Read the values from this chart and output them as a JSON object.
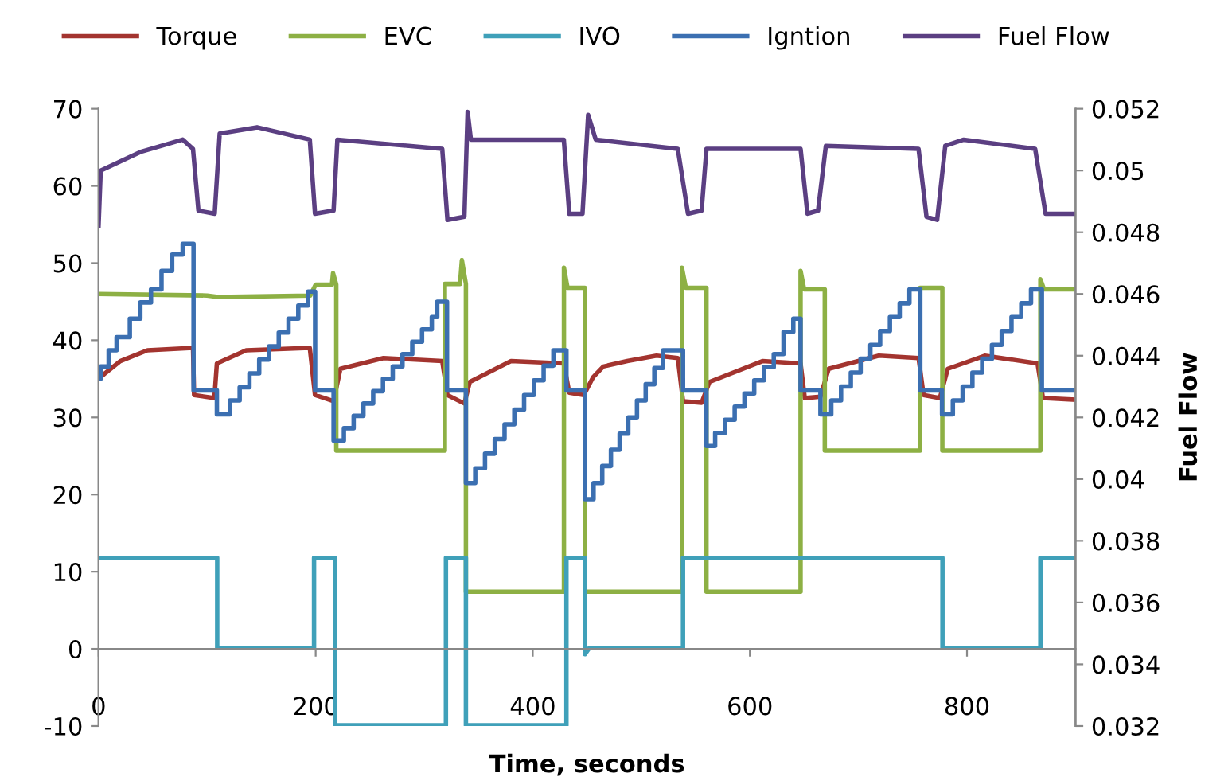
{
  "chart_data": {
    "type": "line",
    "xlabel": "Time, seconds",
    "y2label": "Fuel Flow",
    "xlim": [
      0,
      900
    ],
    "xticks": [
      0,
      200,
      400,
      600,
      800
    ],
    "ylim": [
      -10,
      70
    ],
    "yticks": [
      -10,
      0,
      10,
      20,
      30,
      40,
      50,
      60,
      70
    ],
    "y2lim": [
      0.032,
      0.052
    ],
    "y2ticks": [
      0.032,
      0.034,
      0.036,
      0.038,
      0.04,
      0.042,
      0.044,
      0.046,
      0.048,
      0.05,
      0.052
    ],
    "grid": false,
    "legend": "top",
    "marker": "none",
    "line_style": "solid",
    "series": [
      {
        "name": "Torque",
        "color": "#a3342f",
        "x": [
          0,
          5,
          20,
          45,
          87,
          88,
          106.7,
          109,
          136,
          194.6,
          199.4,
          216.5,
          222.8,
          262.5,
          316.6,
          321.4,
          337,
          342,
          380,
          428.6,
          433.6,
          447,
          455.5,
          465,
          487,
          514,
          533.6,
          538.4,
          555.5,
          562.8,
          611.6,
          646.7,
          650.6,
          665,
          672.6,
          718.8,
          755.4,
          760,
          775,
          782.3,
          816.4,
          865,
          870,
          899
        ],
        "values": [
          35.0,
          35.6,
          37.3,
          38.7,
          39.0,
          32.9,
          32.5,
          37.0,
          38.7,
          39.0,
          32.9,
          32.1,
          36.3,
          37.7,
          37.3,
          32.9,
          31.8,
          34.6,
          37.3,
          37.0,
          33.2,
          32.9,
          35.2,
          36.6,
          37.3,
          38.0,
          37.7,
          32.1,
          31.9,
          34.6,
          37.3,
          37.0,
          32.5,
          32.7,
          36.3,
          38.0,
          37.7,
          32.9,
          32.5,
          36.3,
          38.0,
          37.0,
          32.5,
          32.3
        ]
      },
      {
        "name": "EVC",
        "color": "#8db044",
        "x": [
          0,
          100,
          110,
          195,
          200,
          215,
          216,
          219,
          219,
          319,
          319,
          333,
          334.7,
          338.4,
          338.4,
          428.7,
          428.7,
          432,
          448,
          448,
          537.4,
          537.4,
          541,
          560,
          560,
          646.7,
          646.7,
          650,
          669,
          669,
          756.8,
          756.8,
          777.3,
          777.3,
          867.6,
          867.6,
          871,
          899
        ],
        "values": [
          46.0,
          45.8,
          45.6,
          45.8,
          47.2,
          47.2,
          48.7,
          47.2,
          25.7,
          25.7,
          47.3,
          47.3,
          50.4,
          47.3,
          7.4,
          7.4,
          49.4,
          46.8,
          46.8,
          7.4,
          7.4,
          49.4,
          46.8,
          46.8,
          7.4,
          7.4,
          49.0,
          46.6,
          46.6,
          25.7,
          25.7,
          46.8,
          46.8,
          25.7,
          25.7,
          47.9,
          46.6,
          46.6
        ]
      },
      {
        "name": "IVO",
        "color": "#3fa0b9",
        "x": [
          0,
          109.3,
          109.3,
          198.5,
          198.5,
          218,
          218,
          320,
          320,
          338.4,
          338.4,
          431,
          431,
          448,
          448,
          452,
          538.4,
          538.4,
          777.4,
          777.4,
          867.6,
          867.6,
          899
        ],
        "values": [
          11.8,
          11.8,
          0.1,
          0.1,
          11.8,
          11.8,
          -9.9,
          -9.9,
          11.8,
          11.8,
          -9.9,
          -9.9,
          11.8,
          11.8,
          -0.7,
          0.1,
          0.1,
          11.8,
          11.8,
          0.1,
          0.1,
          11.8,
          11.8
        ]
      },
      {
        "name": "Igntion",
        "color": "#3b6fb1",
        "type": "step",
        "x": [
          0,
          2,
          9.3,
          16.6,
          28.8,
          38.5,
          48.3,
          58,
          67.8,
          77.5,
          87.5,
          109,
          121,
          130,
          139,
          148,
          157,
          166,
          175,
          184,
          193,
          199.5,
          216.5,
          226,
          235,
          244,
          253,
          262,
          271,
          280,
          289,
          298,
          307,
          312,
          321,
          338.4,
          347,
          356,
          365,
          374,
          383,
          392,
          401,
          410,
          419,
          431,
          448,
          456,
          464,
          472,
          480,
          488,
          496,
          504,
          512,
          520,
          538.4,
          560,
          568,
          577,
          586,
          595,
          604,
          613,
          622,
          631,
          640,
          646.7,
          665,
          675,
          684,
          693,
          702,
          711,
          720,
          729,
          738,
          747,
          757,
          777,
          787,
          796,
          805,
          814,
          823,
          832,
          841,
          850,
          859,
          869,
          899
        ],
        "values": [
          35.0,
          36.6,
          38.7,
          40.4,
          42.8,
          44.9,
          46.6,
          49.0,
          51.1,
          52.5,
          33.5,
          30.4,
          32.2,
          33.9,
          35.7,
          37.5,
          39.2,
          41.0,
          42.8,
          44.5,
          46.3,
          33.5,
          27.0,
          28.6,
          30.2,
          31.8,
          33.4,
          35.0,
          36.6,
          38.2,
          39.8,
          41.4,
          43.0,
          45.0,
          33.5,
          21.5,
          23.4,
          25.3,
          27.2,
          29.1,
          31.0,
          32.9,
          34.8,
          36.7,
          38.7,
          33.5,
          19.4,
          21.5,
          23.7,
          25.8,
          27.9,
          30.0,
          32.2,
          34.3,
          36.4,
          38.7,
          33.5,
          26.3,
          28.0,
          29.7,
          31.4,
          33.1,
          34.8,
          36.5,
          38.2,
          41.1,
          42.8,
          33.5,
          30.4,
          32.2,
          34.0,
          35.8,
          37.6,
          39.4,
          41.2,
          43.0,
          44.8,
          46.6,
          33.5,
          30.4,
          32.2,
          34.0,
          35.8,
          37.6,
          39.4,
          41.2,
          43.0,
          44.8,
          46.6,
          33.5,
          33.5
        ]
      },
      {
        "name": "Fuel Flow",
        "color": "#5b3f82",
        "axis": "y2",
        "x": [
          0,
          2,
          38.5,
          77.5,
          87,
          92,
          107,
          111.6,
          146,
          194.6,
          199.4,
          216.5,
          220,
          316.6,
          321.4,
          337,
          340,
          343,
          428.6,
          433.6,
          445.8,
          451,
          458,
          533.6,
          543,
          555.5,
          560,
          646.7,
          653,
          662.8,
          670,
          755.4,
          762.7,
          772.5,
          780,
          797,
          862.8,
          872.4,
          899
        ],
        "values": [
          0.0482,
          0.05,
          0.0506,
          0.051,
          0.0507,
          0.0487,
          0.0486,
          0.0512,
          0.0514,
          0.051,
          0.0486,
          0.0487,
          0.051,
          0.0507,
          0.0484,
          0.0485,
          0.0519,
          0.051,
          0.051,
          0.0486,
          0.0486,
          0.0518,
          0.051,
          0.0507,
          0.0486,
          0.0487,
          0.0507,
          0.0507,
          0.0486,
          0.0487,
          0.0508,
          0.0507,
          0.0485,
          0.0484,
          0.0508,
          0.051,
          0.0507,
          0.0486,
          0.0486
        ]
      }
    ]
  }
}
